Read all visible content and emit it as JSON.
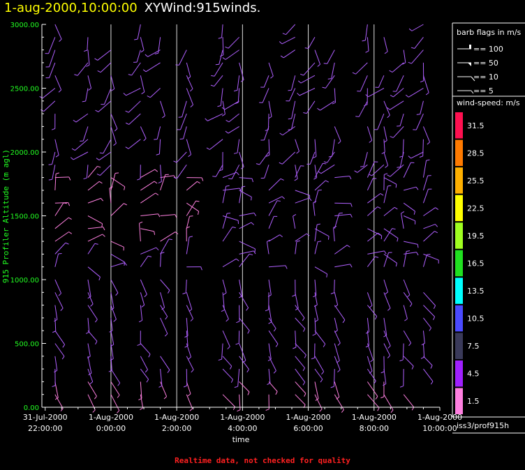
{
  "title": {
    "date_time": "1-aug-2000,10:00:00",
    "product": "XYWind:915winds."
  },
  "footer": "Realtime data, not checked for quality",
  "colors": {
    "background": "#000000",
    "axis": "#ffffff",
    "ylabel": "#22ff22",
    "title_date": "#ffff00",
    "barb": "#b060ff",
    "barb_light": "#ff9cf0",
    "footer": "#ff2020"
  },
  "chart_data": {
    "type": "wind-barb",
    "ylabel": "915 Profiler Altitude (m agl)",
    "xlabel": "time",
    "ylim": [
      0,
      3000
    ],
    "yticks": [
      "0.00",
      "500.00",
      "1000.00",
      "1500.00",
      "2000.00",
      "2500.00",
      "3000.00"
    ],
    "xticks": [
      {
        "date": "31-Jul-2000",
        "time": "22:00:00"
      },
      {
        "date": "1-Aug-2000",
        "time": "0:00:00"
      },
      {
        "date": "1-Aug-2000",
        "time": "2:00:00"
      },
      {
        "date": "1-Aug-2000",
        "time": "4:00:00"
      },
      {
        "date": "1-Aug-2000",
        "time": "6:00:00"
      },
      {
        "date": "1-Aug-2000",
        "time": "8:00:00"
      },
      {
        "date": "1-Aug-2000",
        "time": "10:00:00"
      }
    ],
    "xlim_hours": [
      21.9,
      34.0
    ],
    "grid_hours": [
      24,
      26,
      28,
      30,
      32
    ],
    "profile_hours": [
      22.3,
      23.3,
      24.0,
      24.9,
      25.5,
      26.3,
      27.4,
      27.9,
      28.8,
      29.6,
      30.2,
      30.8,
      31.8,
      32.3,
      32.9,
      33.5
    ],
    "barb_legend": {
      "title": "barb flags in m/s",
      "entries": [
        "== 100",
        "== 50",
        "== 10",
        "== 5"
      ]
    },
    "speed_legend": {
      "title": "wind-speed: m/s",
      "bins": [
        {
          "label": "31.5",
          "color": "#ff1050"
        },
        {
          "label": "28.5",
          "color": "#ff7a00"
        },
        {
          "label": "25.5",
          "color": "#ffb000"
        },
        {
          "label": "22.5",
          "color": "#ffff00"
        },
        {
          "label": "19.5",
          "color": "#a0ff20"
        },
        {
          "label": "16.5",
          "color": "#20e020"
        },
        {
          "label": "13.5",
          "color": "#00ffff"
        },
        {
          "label": "10.5",
          "color": "#4a4aff"
        },
        {
          "label": "7.5",
          "color": "#3a3a5a"
        },
        {
          "label": "4.5",
          "color": "#a020ff"
        },
        {
          "label": "1.5",
          "color": "#ff80e0"
        }
      ]
    },
    "station": "iss3/prof915h"
  }
}
